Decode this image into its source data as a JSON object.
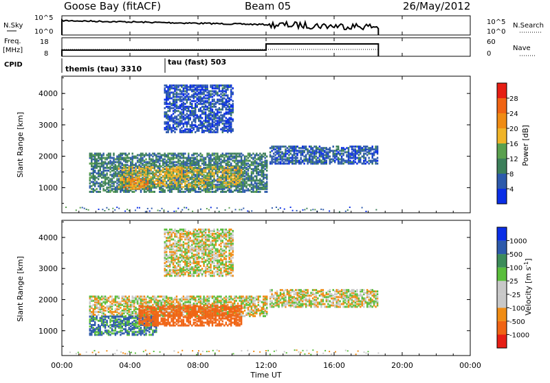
{
  "header": {
    "site": "Goose Bay (fitACF)",
    "beam": "Beam 05",
    "date": "26/May/2012"
  },
  "panels": {
    "nsky": {
      "label": "N.Sky",
      "ytick_top": "10^5",
      "ytick_bottom": "10^0",
      "rtick_top": "10^5",
      "rtick_bottom": "10^0",
      "right_label": "N.Search"
    },
    "freq": {
      "label_top": "Freq.",
      "label_unit": "[MHz]",
      "ytick_top": "18",
      "ytick_bottom": "8",
      "rtick_top": "60",
      "rtick_bottom": "0",
      "right_label": "Nave"
    },
    "cpid": {
      "label": "CPID",
      "programs": [
        {
          "name": "themis (tau) 3310",
          "start_hour": 0.0
        },
        {
          "name": "tau (fast) 503",
          "start_hour": 6.0
        }
      ]
    }
  },
  "colors": {
    "power": [
      "#0a2ee6",
      "#2d5aab",
      "#3c7f5a",
      "#5aa04e",
      "#f0b428",
      "#f08c14",
      "#f06414",
      "#e61e14"
    ],
    "velocity": [
      "#e61e14",
      "#f06414",
      "#f08c14",
      "#c8c8c8",
      "#c8c8c8",
      "#5abe3c",
      "#3c8c5a",
      "#2d5aab",
      "#0a2ee6"
    ],
    "ground_scatter": "#c8c8c8"
  },
  "chart_data": [
    {
      "type": "heatmap",
      "name_on_chart": "Power [dB]",
      "colorbar_label": "Power [dB]",
      "colorbar_ticks": [
        "4",
        "8",
        "12",
        "16",
        "20",
        "24",
        "28"
      ],
      "value_range": [
        0,
        32
      ],
      "ylabel": "Slant Range [km]",
      "yticks": [
        "1000",
        "2000",
        "3000",
        "4000"
      ],
      "ylim": [
        200,
        4550
      ],
      "xlim": [
        0,
        24
      ],
      "echo_regions": [
        {
          "t0": 1.6,
          "t1": 12.0,
          "r0": 900,
          "r1": 2150,
          "level": 9
        },
        {
          "t0": 3.3,
          "t1": 10.5,
          "r0": 1050,
          "r1": 1700,
          "level": 17
        },
        {
          "t0": 3.6,
          "t1": 5.0,
          "r0": 1000,
          "r1": 1350,
          "level": 23
        },
        {
          "t0": 6.0,
          "t1": 7.0,
          "r0": 1350,
          "r1": 1700,
          "level": 19
        },
        {
          "t0": 12.2,
          "t1": 18.6,
          "r0": 1800,
          "r1": 2350,
          "level": 6
        },
        {
          "t0": 6.0,
          "t1": 10.0,
          "r0": 2800,
          "r1": 4300,
          "level": 5
        }
      ]
    },
    {
      "type": "heatmap",
      "name_on_chart": "Velocity [m s^-1]",
      "colorbar_label": "Velocity [m s",
      "colorbar_label_exp": "-1",
      "colorbar_label_end": "]",
      "colorbar_ticks": [
        "1000",
        "500",
        "100",
        "25",
        "-25",
        "-100",
        "-500",
        "-1000"
      ],
      "value_range": [
        -1200,
        1200
      ],
      "ylabel": "Slant Range [km]",
      "yticks": [
        "1000",
        "2000",
        "3000",
        "4000"
      ],
      "ylim": [
        200,
        4550
      ],
      "xlim": [
        0,
        24
      ],
      "xlabel": "Time UT",
      "xticks": [
        "00:00",
        "04:00",
        "08:00",
        "12:00",
        "16:00",
        "20:00",
        "00:00"
      ],
      "echo_regions": [
        {
          "t0": 1.6,
          "t1": 12.0,
          "r0": 1500,
          "r1": 2150,
          "vel": 0
        },
        {
          "t0": 1.6,
          "t1": 5.5,
          "r0": 900,
          "r1": 1500,
          "vel": 120
        },
        {
          "t0": 4.5,
          "t1": 10.5,
          "r0": 1200,
          "r1": 1850,
          "vel": -200
        },
        {
          "t0": 12.2,
          "t1": 18.6,
          "r0": 1800,
          "r1": 2350,
          "vel": 0
        },
        {
          "t0": 6.0,
          "t1": 10.0,
          "r0": 2800,
          "r1": 4300,
          "vel": 0
        }
      ]
    }
  ]
}
